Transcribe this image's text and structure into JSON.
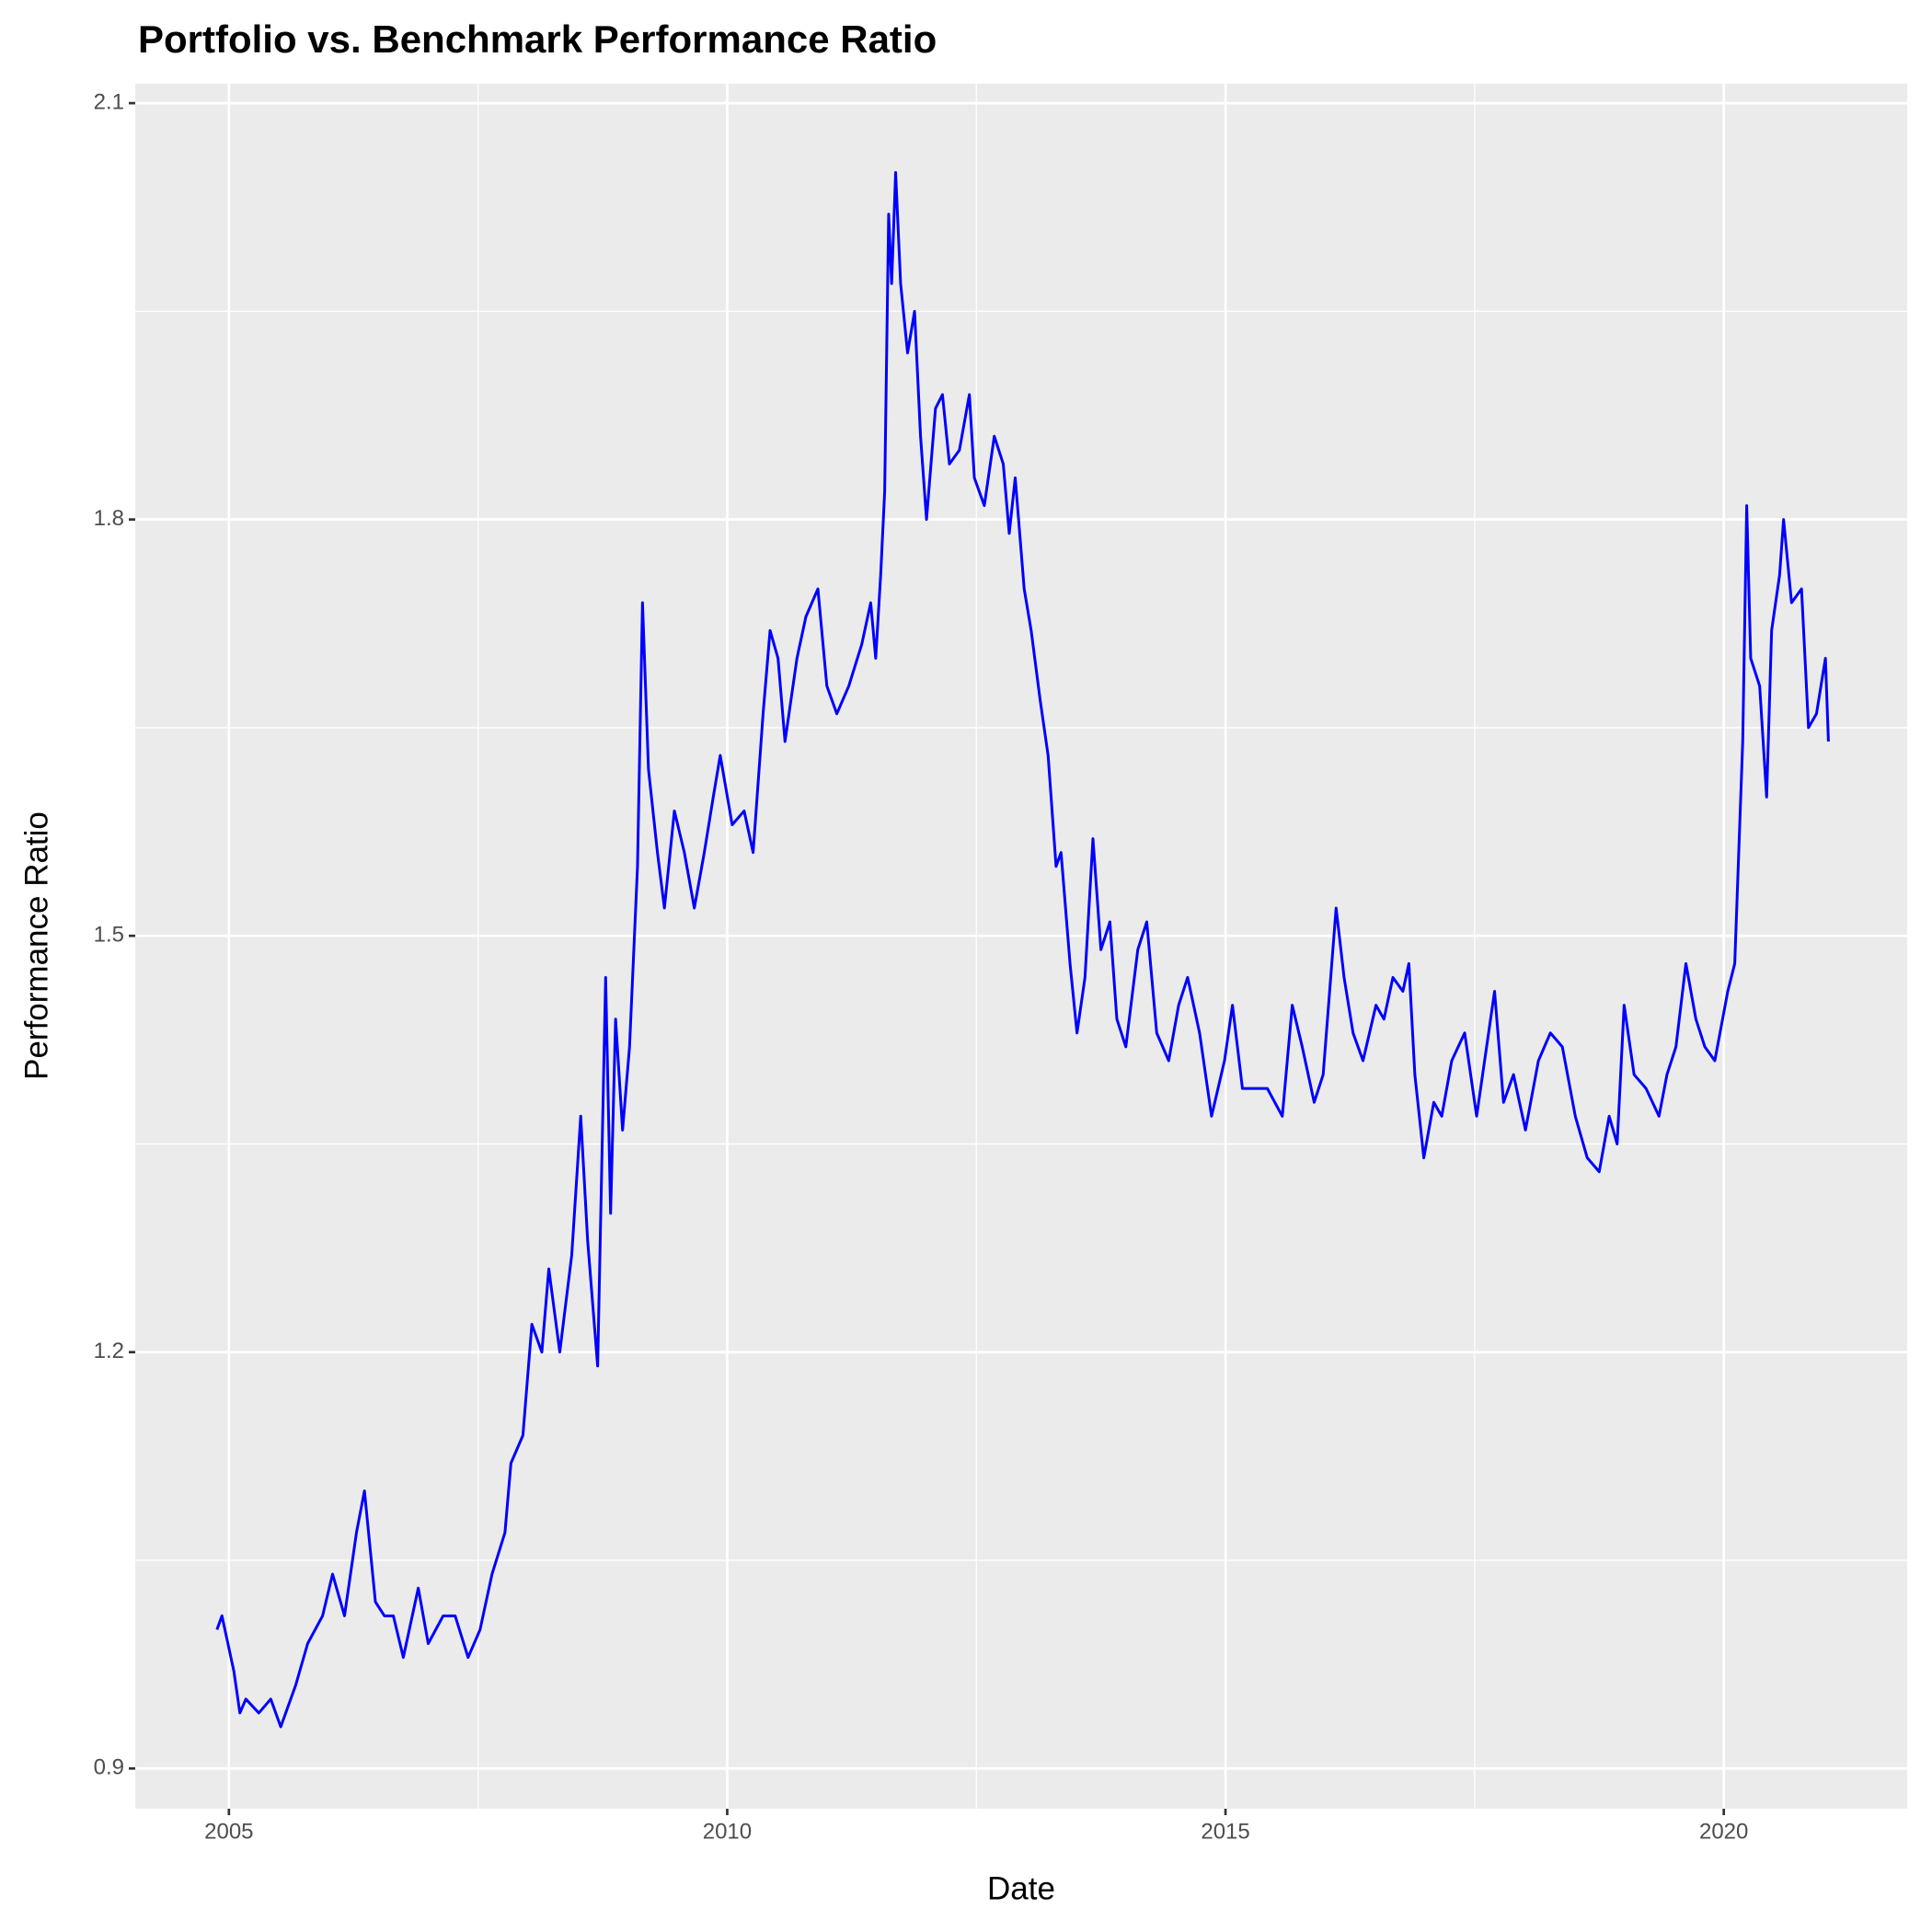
{
  "chart_data": {
    "type": "line",
    "title": "Portfolio vs. Benchmark Performance Ratio",
    "x_label": "Date",
    "y_label": "Performance Ratio",
    "xlim": [
      2004.06,
      2021.84
    ],
    "ylim": [
      0.871,
      2.114
    ],
    "xticks": [
      2005,
      2010,
      2015,
      2020
    ],
    "yticks": [
      0.9,
      1.2,
      1.5,
      1.8,
      2.1
    ],
    "x_minor_gridlines": [
      2007.5,
      2012.5,
      2017.5
    ],
    "y_minor_gridlines": [
      1.05,
      1.35,
      1.65,
      1.95
    ],
    "grid": true,
    "x": [
      2004.88,
      2004.93,
      2004.99,
      2005.05,
      2005.11,
      2005.17,
      2005.3,
      2005.42,
      2005.52,
      2005.67,
      2005.79,
      2005.94,
      2006.04,
      2006.16,
      2006.28,
      2006.36,
      2006.47,
      2006.56,
      2006.65,
      2006.75,
      2006.9,
      2007.0,
      2007.15,
      2007.27,
      2007.4,
      2007.52,
      2007.64,
      2007.77,
      2007.83,
      2007.95,
      2008.04,
      2008.14,
      2008.21,
      2008.32,
      2008.44,
      2008.53,
      2008.6,
      2008.7,
      2008.78,
      2008.83,
      2008.88,
      2008.95,
      2009.02,
      2009.1,
      2009.15,
      2009.21,
      2009.3,
      2009.37,
      2009.47,
      2009.57,
      2009.67,
      2009.77,
      2009.86,
      2009.93,
      2010.05,
      2010.17,
      2010.26,
      2010.36,
      2010.43,
      2010.51,
      2010.58,
      2010.7,
      2010.79,
      2010.91,
      2011.0,
      2011.1,
      2011.22,
      2011.35,
      2011.44,
      2011.49,
      2011.54,
      2011.58,
      2011.62,
      2011.65,
      2011.69,
      2011.74,
      2011.81,
      2011.88,
      2011.94,
      2012.0,
      2012.09,
      2012.16,
      2012.23,
      2012.33,
      2012.43,
      2012.48,
      2012.58,
      2012.68,
      2012.77,
      2012.83,
      2012.89,
      2012.98,
      2013.05,
      2013.14,
      2013.22,
      2013.3,
      2013.35,
      2013.44,
      2013.51,
      2013.59,
      2013.67,
      2013.75,
      2013.84,
      2013.91,
      2014.0,
      2014.12,
      2014.21,
      2014.31,
      2014.43,
      2014.53,
      2014.62,
      2014.74,
      2014.86,
      2014.99,
      2015.07,
      2015.17,
      2015.3,
      2015.42,
      2015.57,
      2015.67,
      2015.77,
      2015.89,
      2015.98,
      2016.11,
      2016.19,
      2016.28,
      2016.38,
      2016.51,
      2016.59,
      2016.68,
      2016.78,
      2016.84,
      2016.9,
      2016.99,
      2017.09,
      2017.17,
      2017.27,
      2017.4,
      2017.52,
      2017.62,
      2017.7,
      2017.79,
      2017.89,
      2018.01,
      2018.14,
      2018.26,
      2018.38,
      2018.51,
      2018.63,
      2018.75,
      2018.85,
      2018.93,
      2019.0,
      2019.1,
      2019.22,
      2019.35,
      2019.43,
      2019.52,
      2019.62,
      2019.72,
      2019.81,
      2019.91,
      2020.04,
      2020.11,
      2020.19,
      2020.23,
      2020.27,
      2020.36,
      2020.43,
      2020.48,
      2020.56,
      2020.6,
      2020.68,
      2020.78,
      2020.85,
      2020.93,
      2021.02,
      2021.05
    ],
    "series": [
      {
        "color": "#0000ff",
        "values": [
          1.0,
          1.01,
          0.99,
          0.97,
          0.94,
          0.95,
          0.94,
          0.95,
          0.93,
          0.96,
          0.99,
          1.01,
          1.04,
          1.01,
          1.07,
          1.1,
          1.02,
          1.01,
          1.01,
          0.98,
          1.03,
          0.99,
          1.01,
          1.01,
          0.98,
          1.0,
          1.04,
          1.07,
          1.12,
          1.14,
          1.22,
          1.2,
          1.26,
          1.2,
          1.27,
          1.37,
          1.28,
          1.19,
          1.47,
          1.3,
          1.44,
          1.36,
          1.42,
          1.55,
          1.74,
          1.62,
          1.56,
          1.52,
          1.59,
          1.56,
          1.52,
          1.56,
          1.6,
          1.63,
          1.58,
          1.59,
          1.56,
          1.66,
          1.72,
          1.7,
          1.64,
          1.7,
          1.73,
          1.75,
          1.68,
          1.66,
          1.68,
          1.71,
          1.74,
          1.7,
          1.76,
          1.82,
          2.02,
          1.97,
          2.05,
          1.97,
          1.92,
          1.95,
          1.86,
          1.8,
          1.88,
          1.89,
          1.84,
          1.85,
          1.89,
          1.83,
          1.81,
          1.86,
          1.84,
          1.79,
          1.83,
          1.75,
          1.72,
          1.67,
          1.63,
          1.55,
          1.56,
          1.48,
          1.43,
          1.47,
          1.57,
          1.49,
          1.51,
          1.44,
          1.42,
          1.49,
          1.51,
          1.43,
          1.41,
          1.45,
          1.47,
          1.43,
          1.37,
          1.41,
          1.45,
          1.39,
          1.39,
          1.39,
          1.37,
          1.45,
          1.42,
          1.38,
          1.4,
          1.52,
          1.47,
          1.43,
          1.41,
          1.45,
          1.44,
          1.47,
          1.46,
          1.48,
          1.4,
          1.34,
          1.38,
          1.37,
          1.41,
          1.43,
          1.37,
          1.42,
          1.46,
          1.38,
          1.4,
          1.36,
          1.41,
          1.43,
          1.42,
          1.37,
          1.34,
          1.33,
          1.37,
          1.35,
          1.45,
          1.4,
          1.39,
          1.37,
          1.4,
          1.42,
          1.48,
          1.44,
          1.42,
          1.41,
          1.46,
          1.48,
          1.64,
          1.81,
          1.7,
          1.68,
          1.6,
          1.72,
          1.76,
          1.8,
          1.74,
          1.75,
          1.65,
          1.66,
          1.7,
          1.64
        ]
      }
    ]
  }
}
